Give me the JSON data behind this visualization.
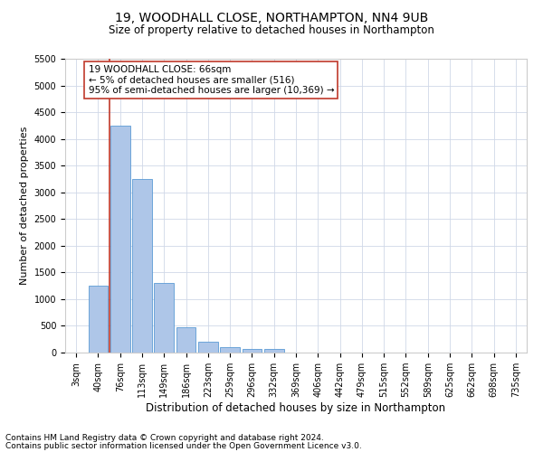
{
  "title1": "19, WOODHALL CLOSE, NORTHAMPTON, NN4 9UB",
  "title2": "Size of property relative to detached houses in Northampton",
  "xlabel": "Distribution of detached houses by size in Northampton",
  "ylabel": "Number of detached properties",
  "categories": [
    "3sqm",
    "40sqm",
    "76sqm",
    "113sqm",
    "149sqm",
    "186sqm",
    "223sqm",
    "259sqm",
    "296sqm",
    "332sqm",
    "369sqm",
    "406sqm",
    "442sqm",
    "479sqm",
    "515sqm",
    "552sqm",
    "589sqm",
    "625sqm",
    "662sqm",
    "698sqm",
    "735sqm"
  ],
  "bar_values": [
    0,
    1250,
    4250,
    3250,
    1300,
    475,
    200,
    100,
    75,
    60,
    0,
    0,
    0,
    0,
    0,
    0,
    0,
    0,
    0,
    0,
    0
  ],
  "bar_color": "#aec6e8",
  "bar_edge_color": "#5b9bd5",
  "vline_x_index": 1.5,
  "vline_color": "#c0392b",
  "annotation_text": "19 WOODHALL CLOSE: 66sqm\n← 5% of detached houses are smaller (516)\n95% of semi-detached houses are larger (10,369) →",
  "annotation_box_color": "#ffffff",
  "annotation_box_edge": "#c0392b",
  "ylim": [
    0,
    5500
  ],
  "yticks": [
    0,
    500,
    1000,
    1500,
    2000,
    2500,
    3000,
    3500,
    4000,
    4500,
    5000,
    5500
  ],
  "footer1": "Contains HM Land Registry data © Crown copyright and database right 2024.",
  "footer2": "Contains public sector information licensed under the Open Government Licence v3.0.",
  "bg_color": "#ffffff",
  "grid_color": "#d0d8e8",
  "title1_fontsize": 10,
  "title2_fontsize": 8.5,
  "xlabel_fontsize": 8.5,
  "ylabel_fontsize": 8,
  "tick_fontsize": 7,
  "annot_fontsize": 7.5,
  "footer_fontsize": 6.5
}
